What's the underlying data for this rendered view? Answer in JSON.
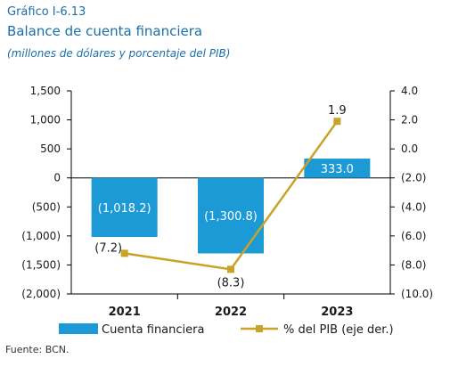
{
  "figure": {
    "label": "Gráfico I-6.13",
    "title": "Balance de cuenta financiera",
    "subtitle": "(millones de dólares y porcentaje del PIB)",
    "source": "Fuente: BCN."
  },
  "colors": {
    "bar": "#1c9ad6",
    "line": "#c9a227",
    "header": "#1a6fa8",
    "axis": "#000000"
  },
  "chart_data": {
    "type": "bar",
    "categories": [
      "2021",
      "2022",
      "2023"
    ],
    "series": [
      {
        "name": "Cuenta financiera",
        "type": "bar",
        "axis": "left",
        "values": [
          -1018.2,
          -1300.8,
          333.0
        ],
        "labels": [
          "(1,018.2)",
          "(1,300.8)",
          "333.0"
        ]
      },
      {
        "name": "% del PIB (eje der.)",
        "type": "line",
        "axis": "right",
        "values": [
          -7.2,
          -8.3,
          1.9
        ],
        "labels": [
          "(7.2)",
          "(8.3)",
          "1.9"
        ]
      }
    ],
    "y_left": {
      "lim": [
        -2000,
        1500
      ],
      "ticks": [
        1500,
        1000,
        500,
        0,
        -500,
        -1000,
        -1500,
        -2000
      ],
      "tick_labels": [
        "1,500",
        "1,000",
        "500",
        "0",
        "(500)",
        "(1,000)",
        "(1,500)",
        "(2,000)"
      ]
    },
    "y_right": {
      "lim": [
        -10,
        4
      ],
      "ticks": [
        4,
        2,
        0,
        -2,
        -4,
        -6,
        -8,
        -10
      ],
      "tick_labels": [
        "4.0",
        "2.0",
        "0.0",
        "(2.0)",
        "(4.0)",
        "(6.0)",
        "(8.0)",
        "(10.0)"
      ]
    },
    "grid": false,
    "legend": "bottom"
  }
}
